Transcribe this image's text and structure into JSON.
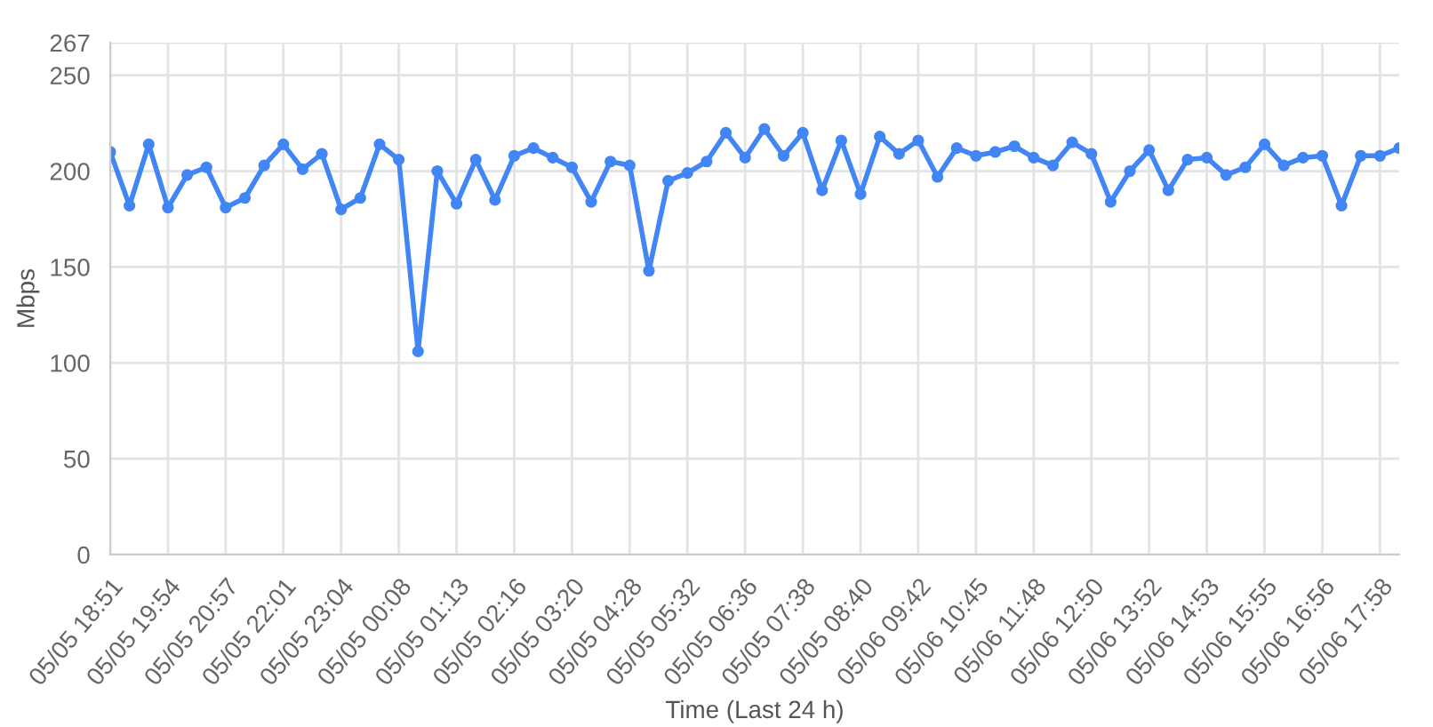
{
  "chart_data": {
    "type": "line",
    "xlabel": "Time (Last 24 h)",
    "ylabel": "Mbps",
    "categories": [
      "05/05 18:51",
      null,
      null,
      "05/05 19:54",
      null,
      null,
      "05/05 20:57",
      null,
      null,
      "05/05 22:01",
      null,
      null,
      "05/05 23:04",
      null,
      null,
      "05/05 00:08",
      null,
      null,
      "05/05 01:13",
      null,
      null,
      "05/05 02:16",
      null,
      null,
      "05/05 03:20",
      null,
      null,
      "05/05 04:28",
      null,
      null,
      "05/05 05:32",
      null,
      null,
      "05/05 06:36",
      null,
      null,
      "05/05 07:38",
      null,
      null,
      "05/05 08:40",
      null,
      null,
      "05/06 09:42",
      null,
      null,
      "05/06 10:45",
      null,
      null,
      "05/06 11:48",
      null,
      null,
      "05/06 12:50",
      null,
      null,
      "05/06 13:52",
      null,
      null,
      "05/06 14:53",
      null,
      null,
      "05/06 15:55",
      null,
      null,
      "05/06 16:56",
      null,
      null,
      "05/06 17:58",
      null
    ],
    "series": [
      {
        "color": "#4285f4",
        "values": [
          210,
          182,
          214,
          181,
          198,
          202,
          181,
          186,
          203,
          214,
          201,
          209,
          180,
          186,
          214,
          206,
          106,
          200,
          183,
          206,
          185,
          208,
          212,
          207,
          202,
          184,
          205,
          203,
          148,
          195,
          199,
          205,
          220,
          207,
          222,
          208,
          220,
          190,
          216,
          188,
          218,
          209,
          216,
          197,
          212,
          208,
          210,
          213,
          207,
          203,
          215,
          209,
          184,
          200,
          211,
          190,
          206,
          207,
          198,
          202,
          214,
          203,
          207,
          208,
          182,
          208,
          208,
          212
        ]
      }
    ],
    "ylim": [
      0,
      267
    ],
    "yticks": [
      0,
      50,
      100,
      150,
      200,
      250,
      267
    ],
    "grid": true,
    "marker": "circle",
    "line_style": "solid"
  }
}
